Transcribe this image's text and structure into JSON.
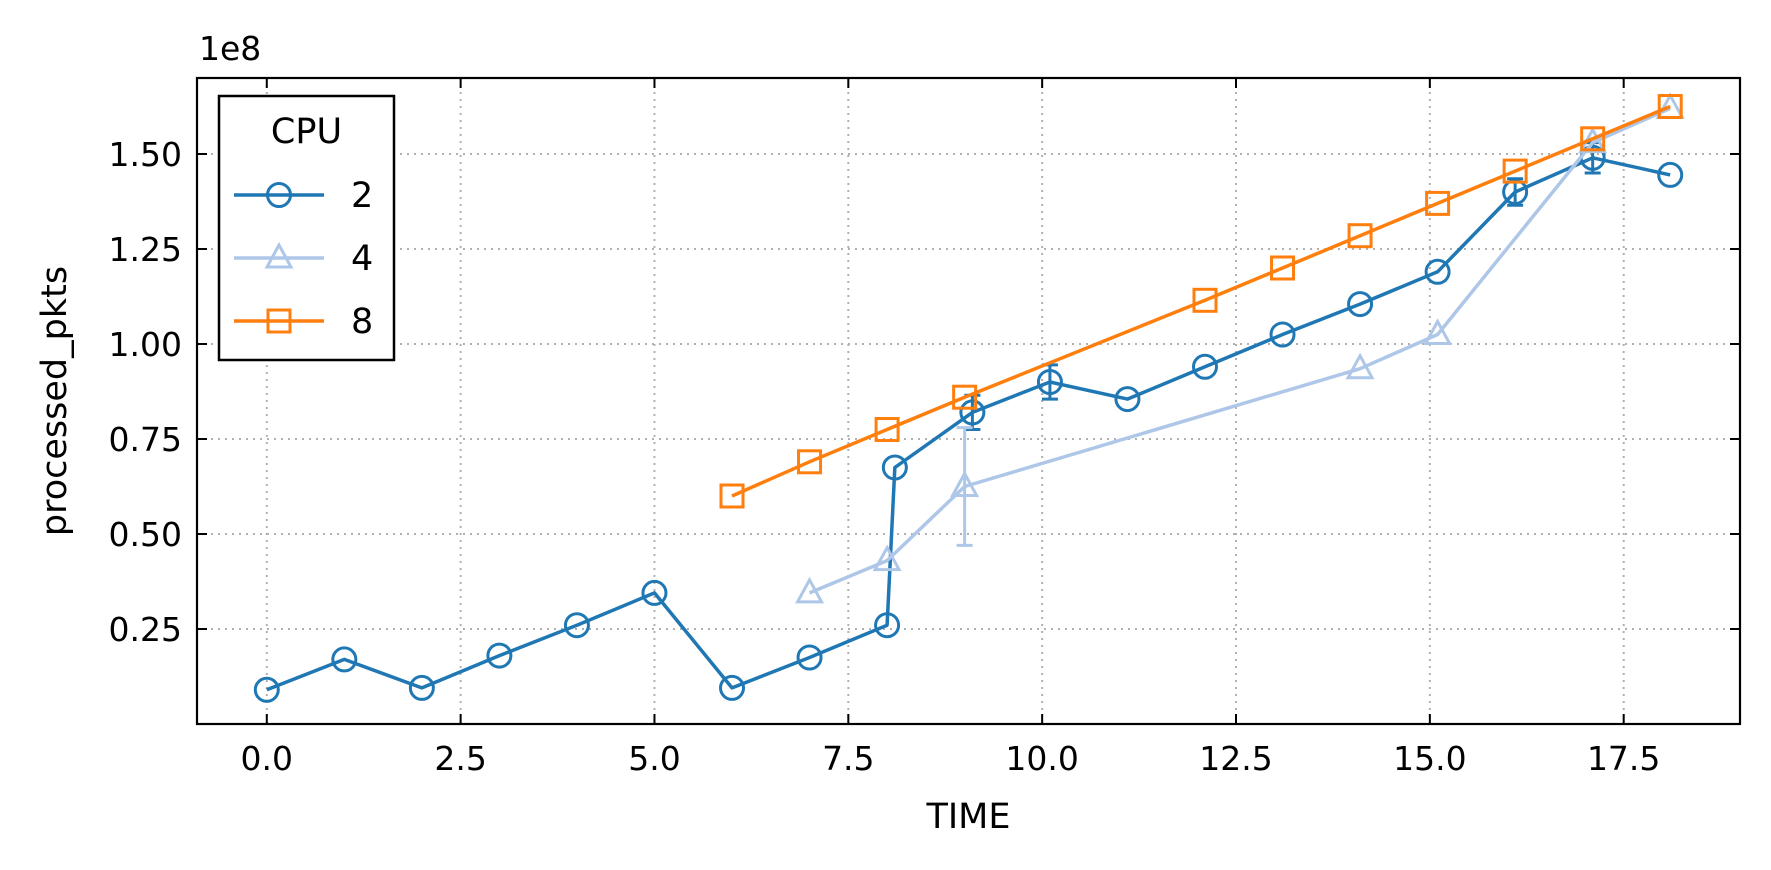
{
  "chart_data": {
    "type": "line",
    "xlabel": "TIME",
    "ylabel": "processed_pkts",
    "y_multiplier_label": "1e8",
    "xlim": [
      -0.9,
      19.0
    ],
    "ylim": [
      0.0,
      1.7
    ],
    "xticks": [
      0.0,
      2.5,
      5.0,
      7.5,
      10.0,
      12.5,
      15.0,
      17.5
    ],
    "xtick_labels": [
      "0.0",
      "2.5",
      "5.0",
      "7.5",
      "10.0",
      "12.5",
      "15.0",
      "17.5"
    ],
    "yticks": [
      0.25,
      0.5,
      0.75,
      1.0,
      1.25,
      1.5
    ],
    "ytick_labels": [
      "0.25",
      "0.50",
      "0.75",
      "1.00",
      "1.25",
      "1.50"
    ],
    "grid": true,
    "legend": {
      "title": "CPU",
      "placement": "top-left"
    },
    "series": [
      {
        "name": "2",
        "color": "#1f77b4",
        "marker": "circle",
        "x": [
          0,
          1,
          2,
          3,
          4,
          5,
          6,
          7,
          8,
          8.1,
          9.1,
          10.1,
          11.1,
          12.1,
          13.1,
          14.1,
          15.1,
          16.1,
          17.1,
          18.1
        ],
        "y": [
          0.09,
          0.17,
          0.095,
          0.18,
          0.26,
          0.345,
          0.095,
          0.175,
          0.26,
          0.675,
          0.82,
          0.9,
          0.855,
          0.94,
          1.025,
          1.105,
          1.19,
          1.4,
          1.49,
          1.445
        ],
        "yerr": [
          0,
          0,
          0,
          0,
          0,
          0,
          0,
          0,
          0,
          0,
          0.045,
          0.045,
          0,
          0,
          0,
          0,
          0,
          0.035,
          0.04,
          0
        ]
      },
      {
        "name": "4",
        "color": "#aec7e8",
        "marker": "triangle",
        "x": [
          7,
          8,
          9,
          14.1,
          15.1,
          17.1,
          18.1
        ],
        "y": [
          0.345,
          0.43,
          0.625,
          0.935,
          1.025,
          1.53,
          1.62
        ],
        "yerr": [
          0,
          0,
          0.155,
          0,
          0,
          0,
          0
        ]
      },
      {
        "name": "8",
        "color": "#ff7f0e",
        "marker": "square",
        "x": [
          6,
          7,
          8,
          9,
          12.1,
          13.1,
          14.1,
          15.1,
          16.1,
          17.1,
          18.1
        ],
        "y": [
          0.6,
          0.69,
          0.775,
          0.86,
          1.115,
          1.2,
          1.285,
          1.37,
          1.455,
          1.54,
          1.625
        ],
        "yerr": [
          0,
          0,
          0,
          0,
          0,
          0,
          0,
          0,
          0,
          0,
          0
        ]
      }
    ]
  }
}
